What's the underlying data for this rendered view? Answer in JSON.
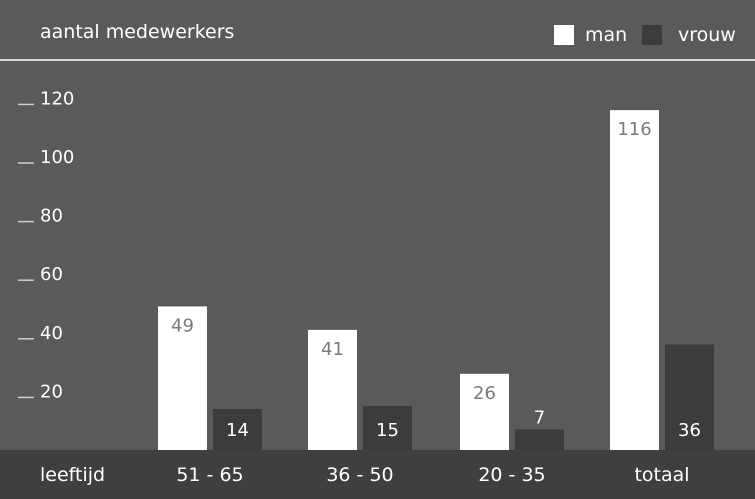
{
  "chart_data": {
    "type": "bar",
    "title": "aantal medewerkers",
    "xlabel": "leeftijd",
    "ylabel": "",
    "categories": [
      "51 - 65",
      "36 - 50",
      "20 - 35",
      "totaal"
    ],
    "series": [
      {
        "name": "man",
        "values": [
          49,
          41,
          26,
          116
        ]
      },
      {
        "name": "vrouw",
        "values": [
          14,
          15,
          7,
          36
        ]
      }
    ],
    "ylim": [
      0,
      130
    ],
    "yticks": [
      20,
      40,
      60,
      80,
      100,
      120
    ],
    "grid": false,
    "legend_position": "top-right",
    "colors": {
      "background": "#5a5a5a",
      "band": "#3f3f3f",
      "man": "#ffffff",
      "vrouw": "#3c3c3c",
      "text": "#ffffff",
      "label_on_man": "#7a7a7a"
    }
  }
}
